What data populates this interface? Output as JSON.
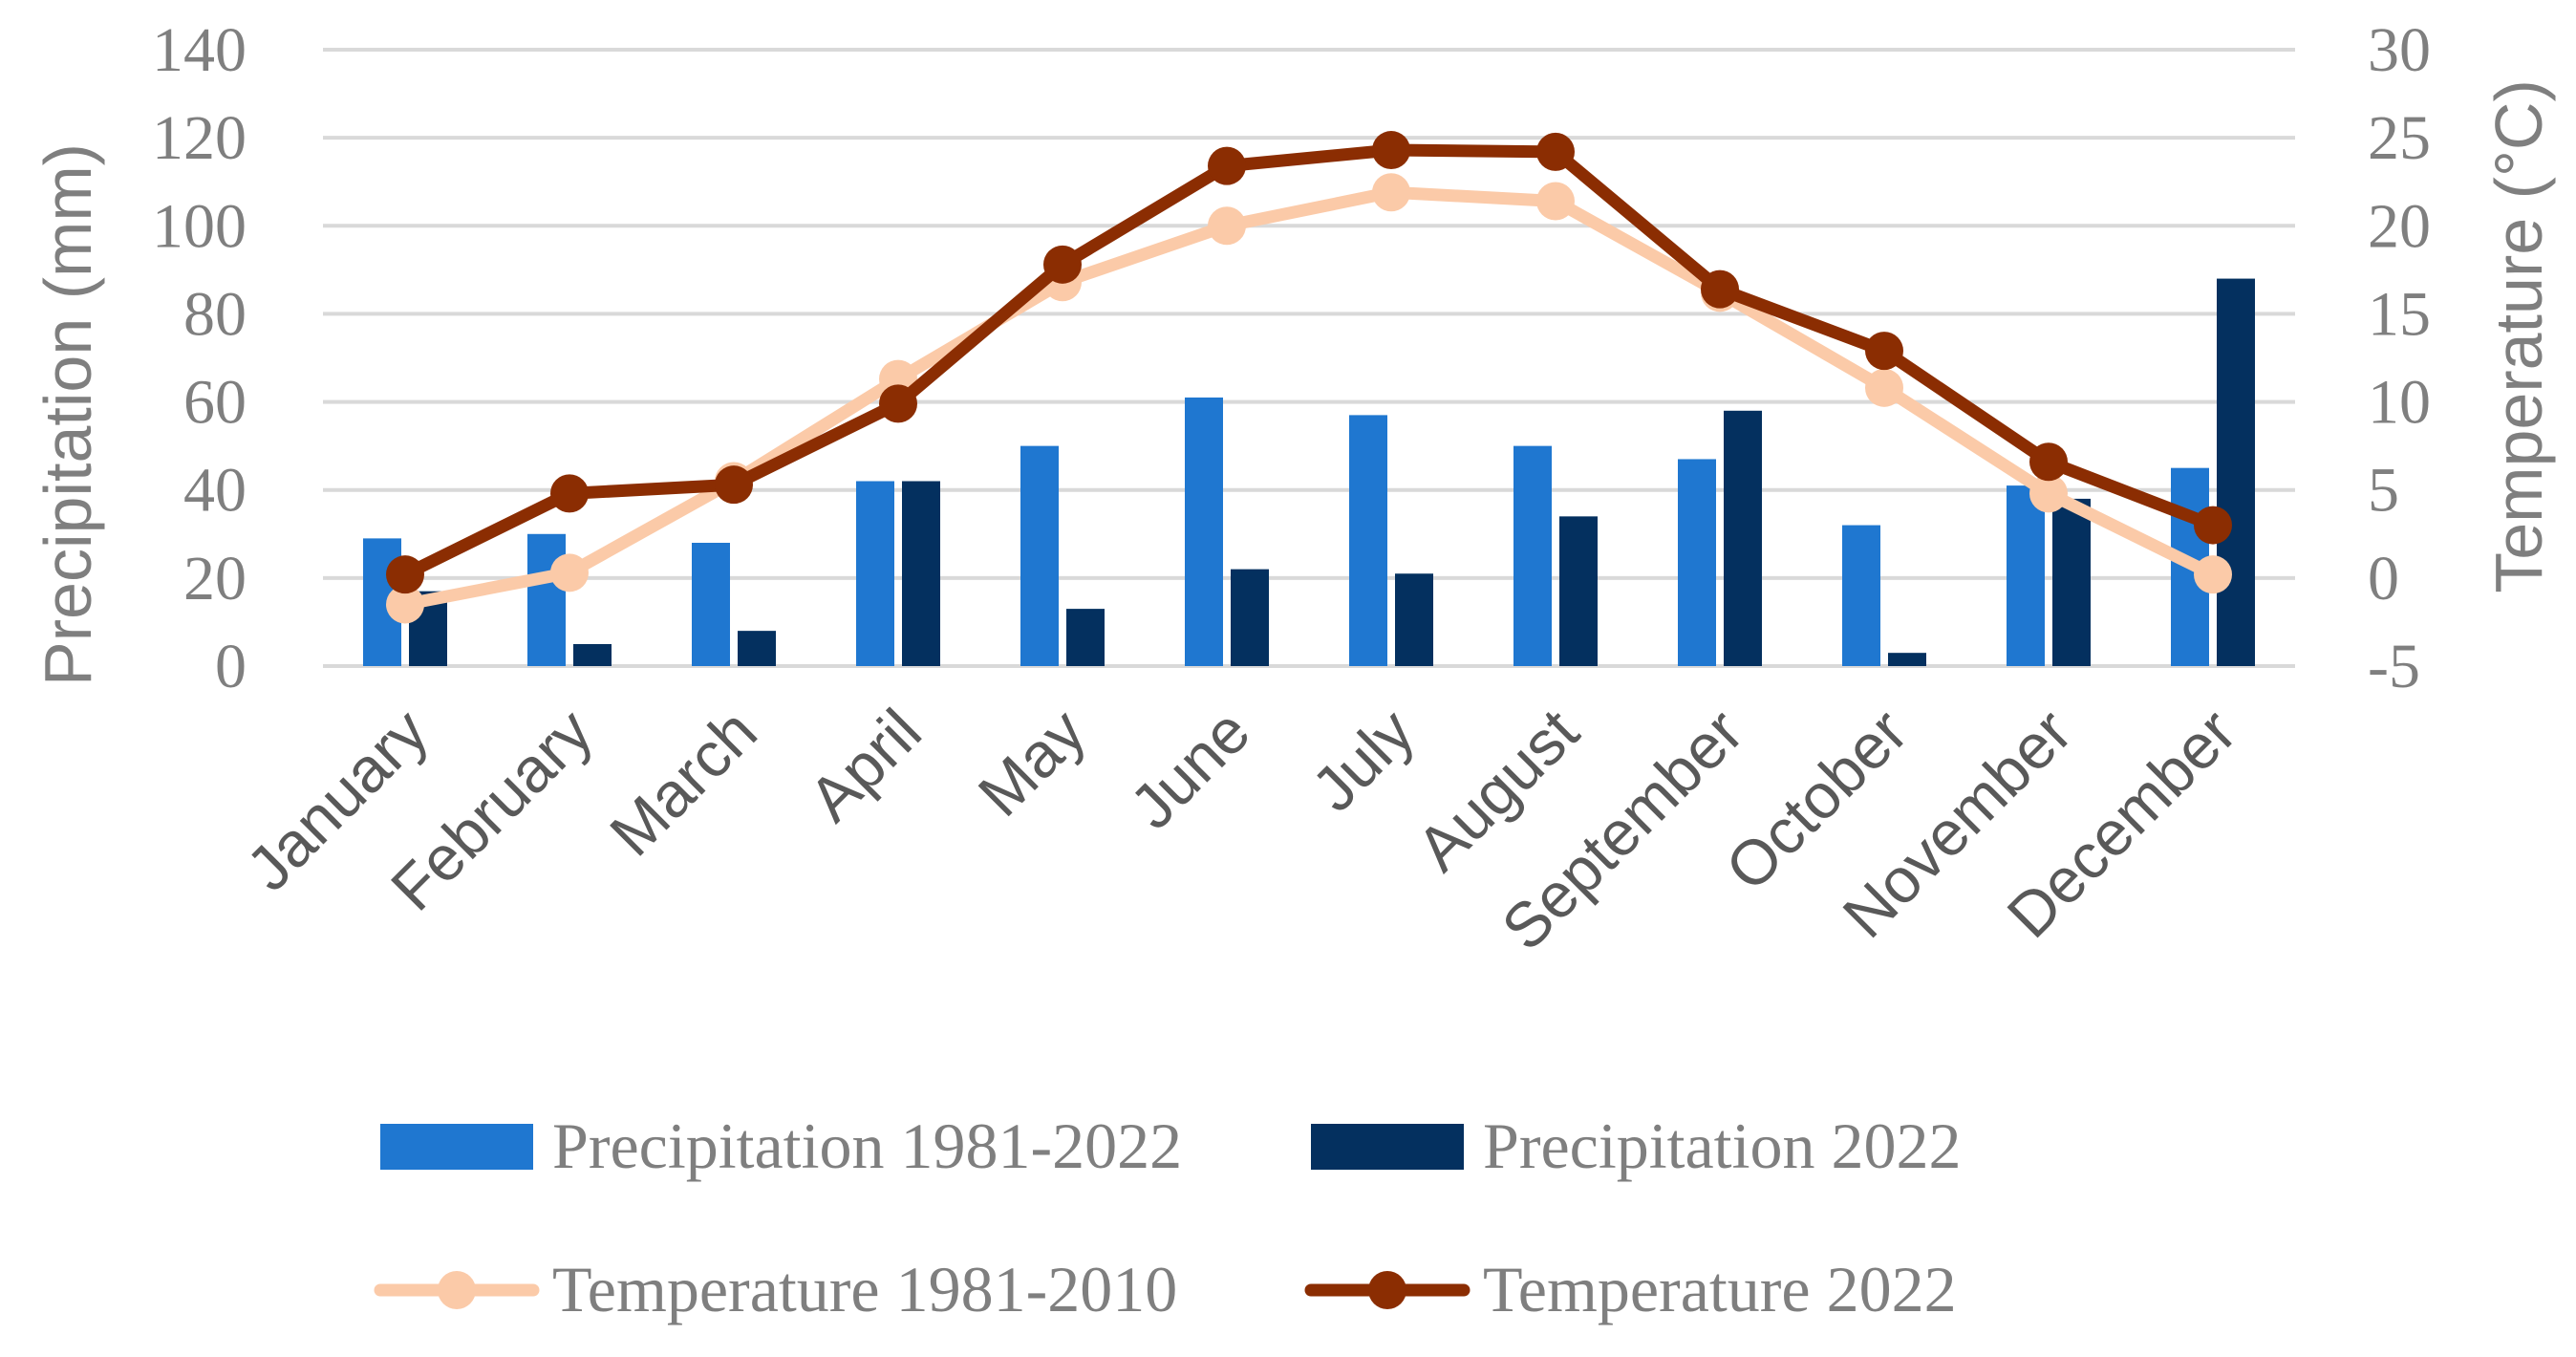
{
  "chart_data": {
    "type": "bar",
    "categories": [
      "January",
      "February",
      "March",
      "April",
      "May",
      "June",
      "July",
      "August",
      "September",
      "October",
      "November",
      "December"
    ],
    "series": [
      {
        "name": "Precipitation 1981-2022",
        "kind": "bar",
        "axis": "left",
        "color": "#1f77d0",
        "values": [
          29,
          30,
          28,
          42,
          50,
          61,
          57,
          50,
          47,
          32,
          41,
          45
        ]
      },
      {
        "name": "Precipitation 2022",
        "kind": "bar",
        "axis": "left",
        "color": "#04305f",
        "values": [
          17,
          5,
          8,
          42,
          13,
          22,
          21,
          34,
          58,
          3,
          38,
          88
        ]
      },
      {
        "name": "Temperature 1981-2010",
        "kind": "line",
        "axis": "right",
        "color": "#fbcaa8",
        "values": [
          -1.5,
          0.3,
          5.5,
          11.3,
          16.8,
          20.0,
          21.9,
          21.4,
          16.2,
          10.8,
          4.8,
          0.2
        ]
      },
      {
        "name": "Temperature 2022",
        "kind": "line",
        "axis": "right",
        "color": "#8b2d02",
        "values": [
          0.2,
          4.8,
          5.3,
          9.9,
          17.8,
          23.4,
          24.3,
          24.2,
          16.4,
          12.9,
          6.6,
          3.0
        ]
      }
    ],
    "y_left": {
      "label": "Precipitation (mm)",
      "min": 0,
      "max": 140,
      "ticks": [
        "0",
        "20",
        "40",
        "60",
        "80",
        "100",
        "120",
        "140"
      ]
    },
    "y_right": {
      "label": "Temperature (°C)",
      "min": -5,
      "max": 30,
      "ticks": [
        "-5",
        "0",
        "5",
        "10",
        "15",
        "20",
        "25",
        "30"
      ]
    },
    "grid": true,
    "legend_position": "bottom"
  }
}
